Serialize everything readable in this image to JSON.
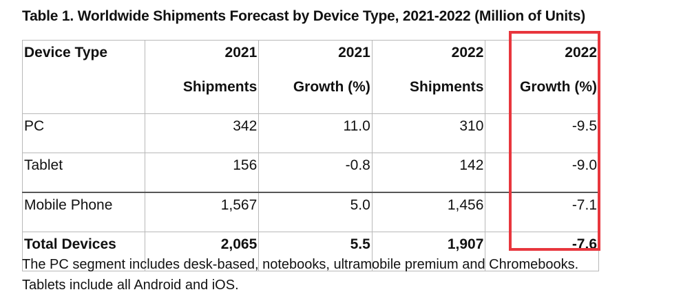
{
  "title": "Table 1. Worldwide Shipments Forecast by Device Type, 2021-2022 (Million of Units)",
  "table": {
    "headers": [
      {
        "line1": "Device Type",
        "line2": ""
      },
      {
        "line1": "2021",
        "line2": "Shipments"
      },
      {
        "line1": "2021",
        "line2": "Growth (%)"
      },
      {
        "line1": "2022",
        "line2": "Shipments"
      },
      {
        "line1": "2022",
        "line2": "Growth (%)"
      }
    ],
    "rows": [
      {
        "device": "PC",
        "ship_2021": "342",
        "growth_2021": "11.0",
        "ship_2022": "310",
        "growth_2022": "-9.5"
      },
      {
        "device": "Tablet",
        "ship_2021": "156",
        "growth_2021": "-0.8",
        "ship_2022": "142",
        "growth_2022": "-9.0"
      },
      {
        "device": "Mobile Phone",
        "ship_2021": "1,567",
        "growth_2021": "5.0",
        "ship_2022": "1,456",
        "growth_2022": "-7.1"
      }
    ],
    "total": {
      "device": "Total Devices",
      "ship_2021": "2,065",
      "growth_2021": "5.5",
      "ship_2022": "1,907",
      "growth_2022": "-7.6"
    }
  },
  "highlight_color": "#e8363d",
  "notes": [
    "The PC segment includes desk-based, notebooks, ultramobile premium and Chromebooks.",
    "Tablets include all Android and iOS."
  ]
}
